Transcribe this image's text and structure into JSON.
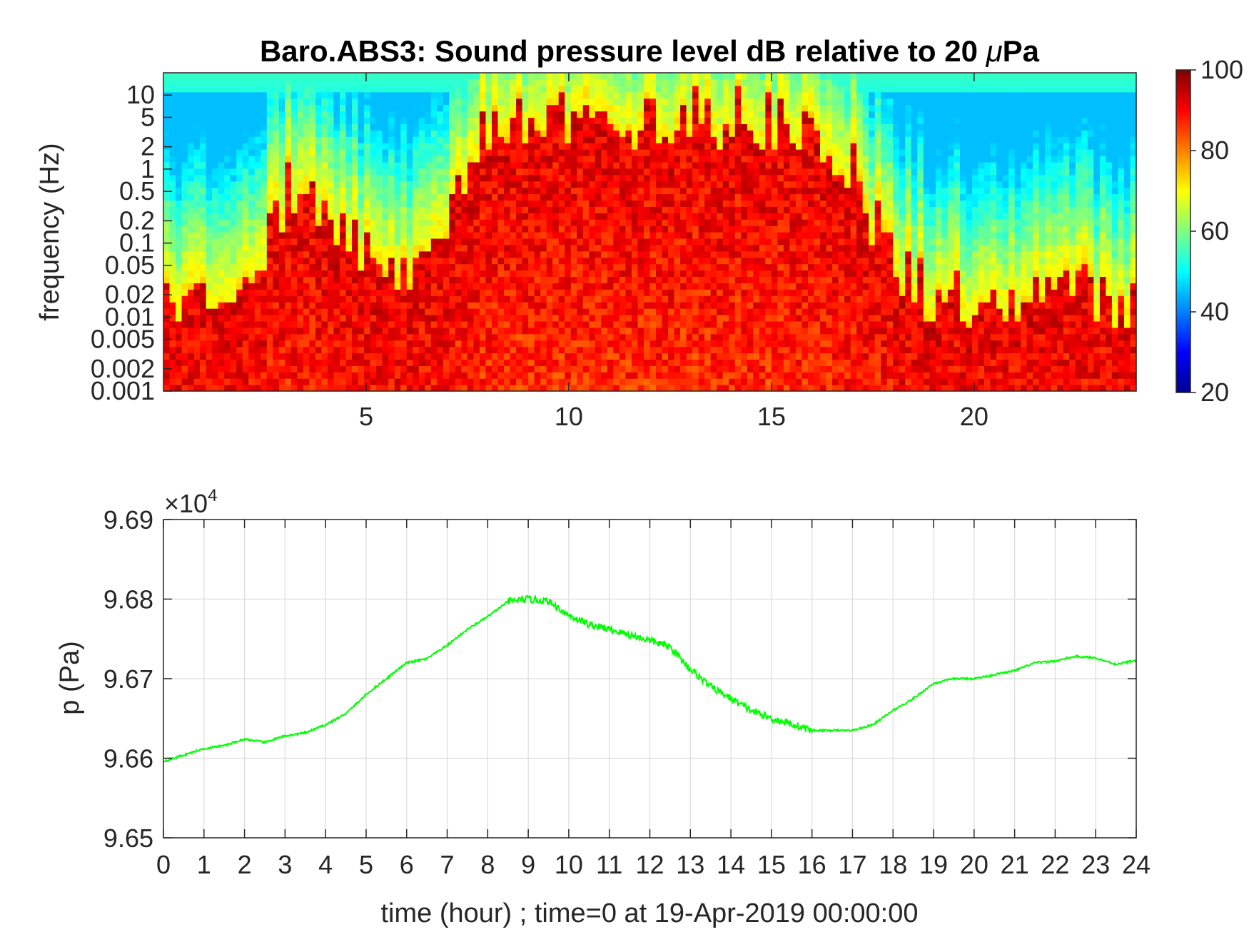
{
  "chart_data": [
    {
      "type": "heatmap",
      "title": "Baro.ABS3: Sound pressure level dB relative to 20 μPa",
      "title_prefix": "Baro.ABS3: Sound pressure level dB relative to 20 ",
      "title_mu": "μ",
      "title_unit": "Pa",
      "ylabel": "frequency (Hz)",
      "xlabel": "",
      "y_scale": "log",
      "xlim": [
        0,
        24
      ],
      "ylim": [
        0.001,
        20
      ],
      "x_ticks": [
        5,
        10,
        15,
        20
      ],
      "x_tick_labels": [
        "5",
        "10",
        "15",
        "20"
      ],
      "y_ticks": [
        0.001,
        0.002,
        0.005,
        0.01,
        0.02,
        0.05,
        0.1,
        0.2,
        0.5,
        1,
        2,
        5,
        10
      ],
      "y_tick_labels": [
        "0.001",
        "0.002",
        "0.005",
        "0.01",
        "0.02",
        "0.05",
        "0.1",
        "0.2",
        "0.5",
        "1",
        "2",
        "5",
        "10"
      ],
      "colormap": "jet",
      "colorbar": {
        "range": [
          20,
          100
        ],
        "ticks": [
          20,
          40,
          60,
          80,
          100
        ],
        "tick_labels": [
          "20",
          "40",
          "60",
          "80",
          "100"
        ]
      },
      "activity_profile": {
        "hours": [
          0,
          1,
          2,
          3,
          4,
          5,
          6,
          7,
          8,
          9,
          10,
          11,
          12,
          13,
          14,
          15,
          16,
          17,
          18,
          19,
          20,
          21,
          22,
          23,
          24
        ],
        "cutoff_frequency_hz": [
          0.02,
          0.02,
          0.02,
          0.5,
          0.3,
          0.1,
          0.05,
          0.2,
          5,
          5,
          5,
          5,
          5,
          5,
          5,
          5,
          2,
          1,
          0.05,
          0.02,
          0.02,
          0.02,
          0.02,
          0.02,
          0.02
        ]
      }
    },
    {
      "type": "line",
      "xlabel": "time (hour) ; time=0 at 19-Apr-2019 00:00:00",
      "ylabel": "p (Pa)",
      "y_exponent_label": "×10",
      "y_exponent": "4",
      "xlim": [
        0,
        24
      ],
      "ylim": [
        9.65,
        9.69
      ],
      "x_ticks": [
        0,
        1,
        2,
        3,
        4,
        5,
        6,
        7,
        8,
        9,
        10,
        11,
        12,
        13,
        14,
        15,
        16,
        17,
        18,
        19,
        20,
        21,
        22,
        23,
        24
      ],
      "x_tick_labels": [
        "0",
        "1",
        "2",
        "3",
        "4",
        "5",
        "6",
        "7",
        "8",
        "9",
        "10",
        "11",
        "12",
        "13",
        "14",
        "15",
        "16",
        "17",
        "18",
        "19",
        "20",
        "21",
        "22",
        "23",
        "24"
      ],
      "y_ticks": [
        9.65,
        9.66,
        9.67,
        9.68,
        9.69
      ],
      "y_tick_labels": [
        "9.65",
        "9.66",
        "9.67",
        "9.68",
        "9.69"
      ],
      "grid": true,
      "line_color": "#00ff00",
      "series": [
        {
          "x": [
            0,
            0.5,
            1,
            1.5,
            2,
            2.5,
            3,
            3.5,
            4,
            4.5,
            5,
            5.5,
            6,
            6.5,
            7,
            7.5,
            8,
            8.5,
            9,
            9.5,
            10,
            10.5,
            11,
            11.5,
            12,
            12.5,
            13,
            13.5,
            14,
            14.5,
            15,
            15.5,
            16,
            16.5,
            17,
            17.5,
            18,
            18.5,
            19,
            19.5,
            20,
            20.5,
            21,
            21.5,
            22,
            22.5,
            23,
            23.5,
            24
          ],
          "y": [
            9.6596,
            9.6604,
            9.6612,
            9.6616,
            9.6624,
            9.662,
            9.6628,
            9.6632,
            9.6642,
            9.6656,
            9.668,
            9.67,
            9.672,
            9.6725,
            9.6742,
            9.6762,
            9.6778,
            9.6797,
            9.68,
            9.6797,
            9.678,
            9.6768,
            9.6762,
            9.6755,
            9.6748,
            9.674,
            9.6712,
            9.669,
            9.6675,
            9.666,
            9.665,
            9.6643,
            9.6635,
            9.6635,
            9.6635,
            9.6642,
            9.666,
            9.6675,
            9.6694,
            9.67,
            9.67,
            9.6705,
            9.671,
            9.672,
            9.6722,
            9.6728,
            9.6726,
            9.6718,
            9.6723
          ]
        }
      ]
    }
  ]
}
